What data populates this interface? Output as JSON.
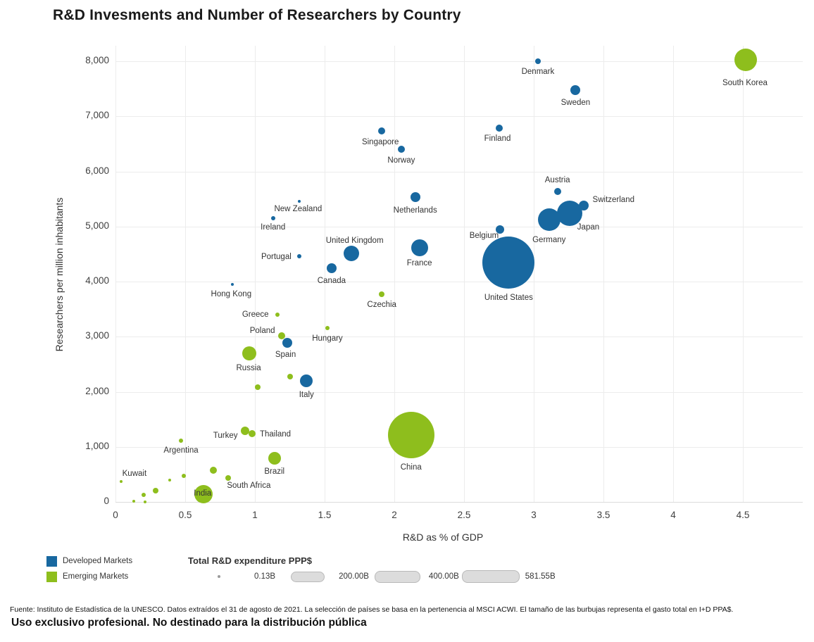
{
  "title": "R&D Invesments and Number of Researchers by Country",
  "legend": {
    "developed_label": "Developed Markets",
    "emerging_label": "Emerging Markets",
    "developed_color": "#1868a0",
    "emerging_color": "#8ebe1d"
  },
  "size_legend": {
    "title": "Total R&D expenditure PPP$",
    "items": [
      "0.13B",
      "200.00B",
      "400.00B",
      "581.55B"
    ]
  },
  "footer": {
    "source": "Fuente: Instituto de Estadística de la UNESCO. Datos extraídos el 31 de agosto de 2021. La selección de países se basa en la pertenencia al MSCI ACWI. El tamaño de las burbujas representa el gasto total en I+D PPA$.",
    "disclaimer": "Uso exclusivo profesional. No destinado para la distribución pública"
  },
  "chart_data": {
    "type": "scatter",
    "title": "R&D Invesments and Number of Researchers by Country",
    "xlabel": "R&D as % of GDP",
    "ylabel": "Researchers per million inhabitants",
    "xlim": [
      0,
      4.75
    ],
    "ylim": [
      0,
      8300
    ],
    "grid": true,
    "x_ticks": [
      0,
      0.5,
      1,
      1.5,
      2,
      2.5,
      3,
      3.5,
      4,
      4.5
    ],
    "x_tick_labels": [
      "0",
      "0.5",
      "1",
      "1.5",
      "2",
      "2.5",
      "3",
      "3.5",
      "4",
      "4.5"
    ],
    "y_ticks": [
      0,
      1000,
      2000,
      3000,
      4000,
      5000,
      6000,
      7000,
      8000
    ],
    "y_tick_labels": [
      "0",
      "1,000",
      "2,000",
      "3,000",
      "4,000",
      "5,000",
      "6,000",
      "7,000",
      "8,000"
    ],
    "size_meaning": "Total R&D expenditure PPP$",
    "series": [
      {
        "name": "Developed Markets",
        "color": "#1868a0",
        "points": [
          {
            "country": "Denmark",
            "x": 3.03,
            "y": 8000,
            "r": 4,
            "label_offset": [
              0,
              15
            ]
          },
          {
            "country": "Sweden",
            "x": 3.3,
            "y": 7480,
            "r": 7,
            "label_offset": [
              0,
              18
            ]
          },
          {
            "country": "Finland",
            "x": 2.75,
            "y": 6790,
            "r": 5,
            "label_offset": [
              -2,
              15
            ]
          },
          {
            "country": "Singapore",
            "x": 1.91,
            "y": 6740,
            "r": 5,
            "label_offset": [
              -2,
              16
            ]
          },
          {
            "country": "Norway",
            "x": 2.05,
            "y": 6400,
            "r": 5,
            "label_offset": [
              0,
              16
            ]
          },
          {
            "country": "Netherlands",
            "x": 2.15,
            "y": 5530,
            "r": 7,
            "label_offset": [
              0,
              19
            ]
          },
          {
            "country": "New Zealand",
            "x": 1.32,
            "y": 5460,
            "r": 2,
            "label_offset": [
              -2,
              11
            ]
          },
          {
            "country": "Ireland",
            "x": 1.13,
            "y": 5150,
            "r": 3,
            "label_offset": [
              0,
              13
            ]
          },
          {
            "country": "Austria",
            "x": 3.17,
            "y": 5640,
            "r": 5,
            "label_offset": [
              0,
              -16
            ]
          },
          {
            "country": "Switzerland",
            "x": 3.36,
            "y": 5380,
            "r": 7,
            "label_offset": [
              42,
              -8
            ]
          },
          {
            "country": "Japan",
            "x": 3.26,
            "y": 5240,
            "r": 18,
            "label_offset": [
              26,
              20
            ]
          },
          {
            "country": "Germany",
            "x": 3.11,
            "y": 5120,
            "r": 16,
            "label_offset": [
              0,
              29
            ]
          },
          {
            "country": "Belgium",
            "x": 2.76,
            "y": 4950,
            "r": 6,
            "label_offset": [
              -23,
              9
            ]
          },
          {
            "country": "United States",
            "x": 2.82,
            "y": 4340,
            "r": 37,
            "label_offset": [
              0,
              50
            ]
          },
          {
            "country": "United Kingdom",
            "x": 1.69,
            "y": 4510,
            "r": 11,
            "label_offset": [
              5,
              -18
            ]
          },
          {
            "country": "France",
            "x": 2.18,
            "y": 4610,
            "r": 12,
            "label_offset": [
              0,
              22
            ]
          },
          {
            "country": "Canada",
            "x": 1.55,
            "y": 4240,
            "r": 7,
            "label_offset": [
              0,
              18
            ]
          },
          {
            "country": "Portugal",
            "x": 1.32,
            "y": 4460,
            "r": 3,
            "label_offset": [
              -33,
              1
            ]
          },
          {
            "country": "Hong Kong",
            "x": 0.84,
            "y": 3950,
            "r": 2,
            "label_offset": [
              -2,
              14
            ]
          },
          {
            "country": "Spain",
            "x": 1.23,
            "y": 2890,
            "r": 7,
            "label_offset": [
              -2,
              17
            ]
          },
          {
            "country": "Italy",
            "x": 1.37,
            "y": 2200,
            "r": 9,
            "label_offset": [
              0,
              20
            ]
          }
        ]
      },
      {
        "name": "Emerging Markets",
        "color": "#8ebe1d",
        "points": [
          {
            "country": "South Korea",
            "x": 4.52,
            "y": 8030,
            "r": 16,
            "label_offset": [
              -1,
              33
            ]
          },
          {
            "country": "Czechia",
            "x": 1.91,
            "y": 3770,
            "r": 4,
            "label_offset": [
              0,
              15
            ]
          },
          {
            "country": "Greece",
            "x": 1.16,
            "y": 3400,
            "r": 3,
            "label_offset": [
              -31,
              0
            ]
          },
          {
            "country": "Poland",
            "x": 1.19,
            "y": 3020,
            "r": 5,
            "label_offset": [
              -27,
              -7
            ]
          },
          {
            "country": "Hungary",
            "x": 1.52,
            "y": 3160,
            "r": 3,
            "label_offset": [
              0,
              15
            ]
          },
          {
            "country": "Russia",
            "x": 0.96,
            "y": 2700,
            "r": 10,
            "label_offset": [
              -1,
              21
            ]
          },
          {
            "country": "Turkey",
            "x": 0.93,
            "y": 1290,
            "r": 6,
            "label_offset": [
              -28,
              7
            ]
          },
          {
            "country": "Thailand",
            "x": 0.98,
            "y": 1240,
            "r": 5,
            "label_offset": [
              33,
              1
            ]
          },
          {
            "country": "Argentina",
            "x": 0.47,
            "y": 1110,
            "r": 3,
            "label_offset": [
              0,
              14
            ]
          },
          {
            "country": "China",
            "x": 2.12,
            "y": 1220,
            "r": 33,
            "label_offset": [
              0,
              46
            ]
          },
          {
            "country": "Brazil",
            "x": 1.14,
            "y": 790,
            "r": 9,
            "label_offset": [
              0,
              19
            ]
          },
          {
            "country": "South Africa",
            "x": 0.81,
            "y": 430,
            "r": 4,
            "label_offset": [
              29,
              11
            ]
          },
          {
            "country": "Kuwait",
            "x": 0.04,
            "y": 370,
            "r": 2,
            "label_offset": [
              19,
              -11
            ]
          },
          {
            "country": "India",
            "x": 0.63,
            "y": 140,
            "r": 13,
            "label_offset": [
              -1,
              -1
            ]
          },
          {
            "country": "",
            "x": 1.25,
            "y": 2280,
            "r": 4
          },
          {
            "country": "",
            "x": 1.02,
            "y": 2080,
            "r": 4
          },
          {
            "country": "",
            "x": 0.7,
            "y": 575,
            "r": 5
          },
          {
            "country": "",
            "x": 0.49,
            "y": 470,
            "r": 3
          },
          {
            "country": "",
            "x": 0.39,
            "y": 395,
            "r": 2
          },
          {
            "country": "",
            "x": 0.29,
            "y": 205,
            "r": 4
          },
          {
            "country": "",
            "x": 0.2,
            "y": 130,
            "r": 3
          },
          {
            "country": "",
            "x": 0.13,
            "y": 15,
            "r": 2
          },
          {
            "country": "",
            "x": 0.21,
            "y": 0,
            "r": 2
          }
        ]
      }
    ]
  }
}
